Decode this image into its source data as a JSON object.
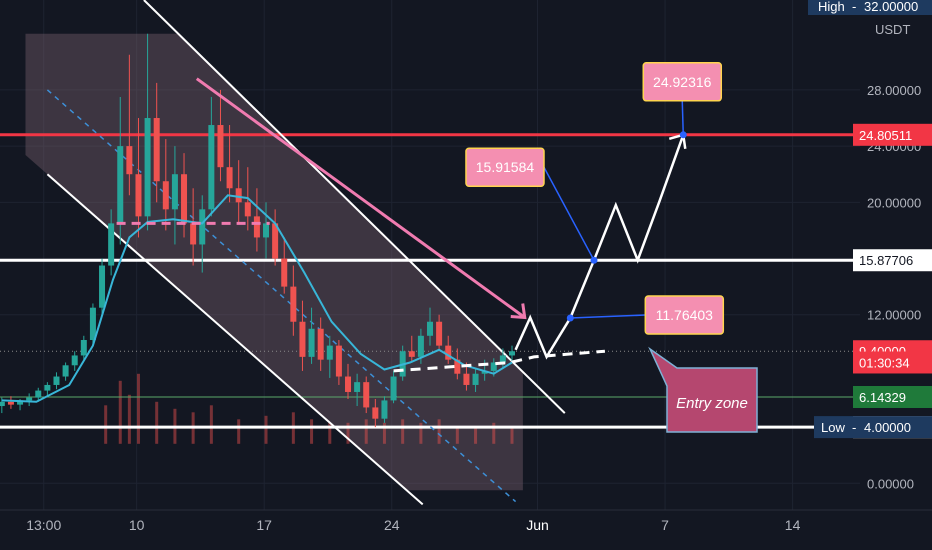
{
  "chart_data": {
    "type": "candlestick",
    "title": "",
    "currency_unit": "USDT",
    "high_label": "High",
    "high_value": "32.00000",
    "low_label": "Low",
    "low_value": "4.00000",
    "y_ticks": [
      "28.00000",
      "24.00000",
      "20.00000",
      "12.00000",
      "0.00000"
    ],
    "y_tick_values": [
      28,
      24,
      20,
      12,
      0
    ],
    "x_ticks": [
      "13:00",
      "10",
      "17",
      "24",
      "Jun",
      "7",
      "14"
    ],
    "x_tick_positions": [
      4.9,
      10,
      17,
      24,
      32,
      39,
      46
    ],
    "x_range": [
      2.5,
      49.7
    ],
    "y_range": [
      -1.9,
      34.4
    ],
    "y_scale": "linear",
    "grid": true,
    "colors": {
      "background": "#131722",
      "up": "#26a69a",
      "down": "#ef5350",
      "ma": "#38b6d8",
      "resistance": "#f23645",
      "support": "#ffffff",
      "fill": "#7d6470",
      "trend_arrow": "#f07bb0",
      "callout": "#f48fb1"
    },
    "price_labels": [
      {
        "text": "24.80511",
        "value": 24.80511,
        "style": "red"
      },
      {
        "text": "15.87706",
        "value": 15.87706,
        "style": "white"
      },
      {
        "text": "9.40000",
        "value": 9.4,
        "style": "red"
      },
      {
        "text": "01:30:34",
        "value": 8.6,
        "style": "red"
      },
      {
        "text": "6.14329",
        "value": 6.14329,
        "style": "green"
      },
      {
        "text": "3.99524",
        "value": 3.99524,
        "style": "white"
      }
    ],
    "horizontal_levels": [
      24.80511,
      15.87706,
      4.0
    ],
    "ohlc": [
      {
        "t": 2.6,
        "o": 5.5,
        "h": 6.1,
        "l": 5.0,
        "c": 5.8
      },
      {
        "t": 3.1,
        "o": 5.8,
        "h": 6.2,
        "l": 5.3,
        "c": 5.6
      },
      {
        "t": 3.6,
        "o": 5.6,
        "h": 6.0,
        "l": 5.2,
        "c": 5.9
      },
      {
        "t": 4.1,
        "o": 5.9,
        "h": 6.4,
        "l": 5.5,
        "c": 6.1
      },
      {
        "t": 4.6,
        "o": 6.1,
        "h": 6.8,
        "l": 5.8,
        "c": 6.6
      },
      {
        "t": 5.1,
        "o": 6.6,
        "h": 7.2,
        "l": 6.2,
        "c": 7.0
      },
      {
        "t": 5.6,
        "o": 7.0,
        "h": 7.9,
        "l": 6.7,
        "c": 7.6
      },
      {
        "t": 6.1,
        "o": 7.6,
        "h": 8.6,
        "l": 7.3,
        "c": 8.4
      },
      {
        "t": 6.6,
        "o": 8.4,
        "h": 9.4,
        "l": 8.0,
        "c": 9.1
      },
      {
        "t": 7.1,
        "o": 9.1,
        "h": 10.5,
        "l": 8.7,
        "c": 10.2
      },
      {
        "t": 7.6,
        "o": 10.2,
        "h": 12.8,
        "l": 9.8,
        "c": 12.5
      },
      {
        "t": 8.1,
        "o": 12.5,
        "h": 16.0,
        "l": 12.0,
        "c": 15.5
      },
      {
        "t": 8.6,
        "o": 15.5,
        "h": 19.5,
        "l": 14.8,
        "c": 18.5
      },
      {
        "t": 9.1,
        "o": 18.5,
        "h": 27.5,
        "l": 17.0,
        "c": 24.0
      },
      {
        "t": 9.6,
        "o": 24.0,
        "h": 30.5,
        "l": 20.5,
        "c": 22.0
      },
      {
        "t": 10.1,
        "o": 22.0,
        "h": 26.0,
        "l": 17.5,
        "c": 19.0
      },
      {
        "t": 10.6,
        "o": 19.0,
        "h": 32.0,
        "l": 18.0,
        "c": 26.0
      },
      {
        "t": 11.1,
        "o": 26.0,
        "h": 28.5,
        "l": 20.0,
        "c": 21.5
      },
      {
        "t": 11.6,
        "o": 21.5,
        "h": 24.5,
        "l": 18.0,
        "c": 19.5
      },
      {
        "t": 12.1,
        "o": 19.5,
        "h": 24.0,
        "l": 17.0,
        "c": 22.0
      },
      {
        "t": 12.6,
        "o": 22.0,
        "h": 23.5,
        "l": 17.5,
        "c": 18.5
      },
      {
        "t": 13.1,
        "o": 18.5,
        "h": 21.0,
        "l": 15.5,
        "c": 17.0
      },
      {
        "t": 13.6,
        "o": 17.0,
        "h": 20.5,
        "l": 15.0,
        "c": 19.5
      },
      {
        "t": 14.1,
        "o": 19.5,
        "h": 27.5,
        "l": 19.0,
        "c": 25.5
      },
      {
        "t": 14.6,
        "o": 25.5,
        "h": 28.0,
        "l": 21.5,
        "c": 22.5
      },
      {
        "t": 15.1,
        "o": 22.5,
        "h": 25.5,
        "l": 20.0,
        "c": 21.0
      },
      {
        "t": 15.6,
        "o": 21.0,
        "h": 23.0,
        "l": 18.5,
        "c": 20.0
      },
      {
        "t": 16.1,
        "o": 20.0,
        "h": 22.5,
        "l": 18.0,
        "c": 19.0
      },
      {
        "t": 16.6,
        "o": 19.0,
        "h": 21.0,
        "l": 16.5,
        "c": 17.5
      },
      {
        "t": 17.1,
        "o": 17.5,
        "h": 20.0,
        "l": 16.0,
        "c": 18.5
      },
      {
        "t": 17.6,
        "o": 18.5,
        "h": 19.5,
        "l": 15.5,
        "c": 16.0
      },
      {
        "t": 18.1,
        "o": 16.0,
        "h": 17.5,
        "l": 13.5,
        "c": 14.0
      },
      {
        "t": 18.6,
        "o": 14.0,
        "h": 15.5,
        "l": 10.5,
        "c": 11.5
      },
      {
        "t": 19.1,
        "o": 11.5,
        "h": 13.0,
        "l": 8.0,
        "c": 9.0
      },
      {
        "t": 19.6,
        "o": 9.0,
        "h": 12.5,
        "l": 8.5,
        "c": 11.0
      },
      {
        "t": 20.1,
        "o": 11.0,
        "h": 11.8,
        "l": 8.0,
        "c": 8.8
      },
      {
        "t": 20.6,
        "o": 8.8,
        "h": 10.5,
        "l": 7.5,
        "c": 9.8
      },
      {
        "t": 21.1,
        "o": 9.8,
        "h": 10.2,
        "l": 7.0,
        "c": 7.6
      },
      {
        "t": 21.6,
        "o": 7.6,
        "h": 8.5,
        "l": 6.0,
        "c": 6.5
      },
      {
        "t": 22.1,
        "o": 6.5,
        "h": 7.8,
        "l": 5.5,
        "c": 7.2
      },
      {
        "t": 22.6,
        "o": 7.2,
        "h": 7.6,
        "l": 5.0,
        "c": 5.4
      },
      {
        "t": 23.1,
        "o": 5.4,
        "h": 6.0,
        "l": 4.0,
        "c": 4.6
      },
      {
        "t": 23.6,
        "o": 4.6,
        "h": 6.2,
        "l": 4.3,
        "c": 5.9
      },
      {
        "t": 24.1,
        "o": 5.9,
        "h": 8.0,
        "l": 5.7,
        "c": 7.6
      },
      {
        "t": 24.6,
        "o": 7.6,
        "h": 9.8,
        "l": 7.3,
        "c": 9.4
      },
      {
        "t": 25.1,
        "o": 9.4,
        "h": 10.5,
        "l": 8.6,
        "c": 9.0
      },
      {
        "t": 25.6,
        "o": 9.0,
        "h": 11.0,
        "l": 8.5,
        "c": 10.5
      },
      {
        "t": 26.1,
        "o": 10.5,
        "h": 12.5,
        "l": 9.8,
        "c": 11.5
      },
      {
        "t": 26.6,
        "o": 11.5,
        "h": 12.0,
        "l": 9.4,
        "c": 9.8
      },
      {
        "t": 27.1,
        "o": 9.8,
        "h": 10.5,
        "l": 8.5,
        "c": 8.8
      },
      {
        "t": 27.6,
        "o": 8.8,
        "h": 9.6,
        "l": 7.4,
        "c": 7.8
      },
      {
        "t": 28.1,
        "o": 7.8,
        "h": 8.6,
        "l": 6.6,
        "c": 7.0
      },
      {
        "t": 28.6,
        "o": 7.0,
        "h": 8.2,
        "l": 6.5,
        "c": 7.8
      },
      {
        "t": 29.1,
        "o": 7.8,
        "h": 8.8,
        "l": 7.3,
        "c": 8.0
      },
      {
        "t": 29.6,
        "o": 8.0,
        "h": 8.9,
        "l": 7.6,
        "c": 8.6
      },
      {
        "t": 30.1,
        "o": 8.6,
        "h": 9.6,
        "l": 8.2,
        "c": 9.1
      },
      {
        "t": 30.6,
        "o": 9.1,
        "h": 9.8,
        "l": 8.7,
        "c": 9.4
      }
    ],
    "moving_average": [
      {
        "t": 2.6,
        "v": 5.9
      },
      {
        "t": 4.5,
        "v": 5.8
      },
      {
        "t": 6.3,
        "v": 7.0
      },
      {
        "t": 7.6,
        "v": 9.8
      },
      {
        "t": 8.7,
        "v": 14.5
      },
      {
        "t": 9.6,
        "v": 17.5
      },
      {
        "t": 10.6,
        "v": 18.6
      },
      {
        "t": 12.0,
        "v": 18.8
      },
      {
        "t": 13.6,
        "v": 18.5
      },
      {
        "t": 15.0,
        "v": 20.5
      },
      {
        "t": 16.1,
        "v": 20.3
      },
      {
        "t": 17.6,
        "v": 18.5
      },
      {
        "t": 19.2,
        "v": 15.0
      },
      {
        "t": 20.7,
        "v": 11.5
      },
      {
        "t": 22.3,
        "v": 9.2
      },
      {
        "t": 23.6,
        "v": 8.1
      },
      {
        "t": 25.0,
        "v": 8.6
      },
      {
        "t": 26.6,
        "v": 9.5
      },
      {
        "t": 28.0,
        "v": 8.4
      },
      {
        "t": 29.6,
        "v": 7.8
      },
      {
        "t": 30.6,
        "v": 8.6
      }
    ],
    "projection_path": [
      {
        "t": 30.8,
        "v": 9.5
      },
      {
        "t": 31.6,
        "v": 11.8
      },
      {
        "t": 32.5,
        "v": 9.0
      },
      {
        "t": 33.8,
        "v": 11.76403
      },
      {
        "t": 35.1,
        "v": 15.87706
      },
      {
        "t": 36.3,
        "v": 19.8
      },
      {
        "t": 37.5,
        "v": 15.87706
      },
      {
        "t": 38.7,
        "v": 20.1
      },
      {
        "t": 40.0,
        "v": 24.80511
      },
      {
        "t": 40.4,
        "v": 23.8
      }
    ],
    "channel": {
      "upper": [
        {
          "t": 10.4,
          "v": 34.4
        },
        {
          "t": 33.5,
          "v": 5.0
        }
      ],
      "lower": [
        {
          "t": 5.1,
          "v": 22.0
        },
        {
          "t": 25.7,
          "v": -1.5
        }
      ],
      "middle": [
        {
          "t": 5.1,
          "v": 28.0
        },
        {
          "t": 30.8,
          "v": -1.3
        }
      ]
    },
    "trend_arrow": [
      {
        "t": 13.3,
        "v": 28.8
      },
      {
        "t": 31.3,
        "v": 11.8
      }
    ],
    "entry_dashes": [
      {
        "t": 24.1,
        "v": 8.0
      },
      {
        "t": 30.5,
        "v": 8.6
      },
      {
        "t": 31.8,
        "v": 9.0
      },
      {
        "t": 35.7,
        "v": 9.4
      }
    ],
    "pink_dashes": [
      {
        "t": 8.9,
        "v": 18.5
      },
      {
        "t": 17.3,
        "v": 18.5
      }
    ],
    "callouts": [
      {
        "text": "24.92316",
        "t": 40.0,
        "v": 24.80511
      },
      {
        "text": "15.91584",
        "t": 35.1,
        "v": 15.87706
      },
      {
        "text": "11.76403",
        "t": 33.8,
        "v": 11.76403
      }
    ],
    "entry_zone_label": "Entry zone",
    "volume": [
      {
        "t": 8.3,
        "v": 0.55
      },
      {
        "t": 9.1,
        "v": 0.9
      },
      {
        "t": 9.6,
        "v": 0.7
      },
      {
        "t": 10.1,
        "v": 1.0
      },
      {
        "t": 11.1,
        "v": 0.6
      },
      {
        "t": 12.1,
        "v": 0.5
      },
      {
        "t": 13.1,
        "v": 0.45
      },
      {
        "t": 14.1,
        "v": 0.55
      },
      {
        "t": 15.6,
        "v": 0.35
      },
      {
        "t": 17.1,
        "v": 0.4
      },
      {
        "t": 18.6,
        "v": 0.45
      },
      {
        "t": 19.6,
        "v": 0.35
      },
      {
        "t": 20.6,
        "v": 0.3
      },
      {
        "t": 21.6,
        "v": 0.3
      },
      {
        "t": 22.6,
        "v": 0.35
      },
      {
        "t": 23.6,
        "v": 0.3
      },
      {
        "t": 24.6,
        "v": 0.35
      },
      {
        "t": 25.6,
        "v": 0.3
      },
      {
        "t": 26.6,
        "v": 0.35
      },
      {
        "t": 27.6,
        "v": 0.25
      },
      {
        "t": 28.6,
        "v": 0.25
      },
      {
        "t": 29.6,
        "v": 0.3
      },
      {
        "t": 30.6,
        "v": 0.25
      }
    ]
  }
}
